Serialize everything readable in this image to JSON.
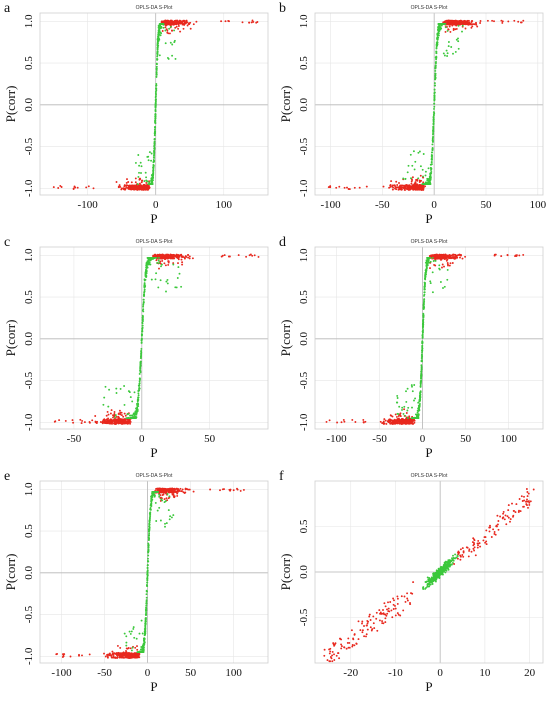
{
  "colors": {
    "red": "#e8281e",
    "green": "#3cc83c"
  },
  "chart_data": [
    {
      "letter": "a",
      "type": "scatter",
      "title": "OPLS-DA S-Plot",
      "xlabel": "P",
      "ylabel": "P(corr)",
      "xlim": [
        -170,
        165
      ],
      "ylim": [
        -1.08,
        1.1
      ],
      "xticks": [
        -100,
        0,
        100
      ],
      "xtick_labels": [
        "-100",
        "0",
        "100"
      ],
      "yticks": [
        -1.0,
        -0.5,
        0.0,
        0.5,
        1.0
      ],
      "ytick_labels": [
        "-1.0",
        "-0.5",
        "0.0",
        "0.5",
        "1.0"
      ],
      "model": {
        "kind": "sigmoid",
        "k": 0.3,
        "xmin": -150,
        "xmax": 150,
        "spread": 40
      }
    },
    {
      "letter": "b",
      "type": "scatter",
      "title": "OPLS-DA S-Plot",
      "xlabel": "P",
      "ylabel": "P(corr)",
      "xlim": [
        -115,
        105
      ],
      "ylim": [
        -1.08,
        1.1
      ],
      "xticks": [
        -100,
        -50,
        0,
        50,
        100
      ],
      "xtick_labels": [
        "-100",
        "-50",
        "0",
        "50",
        "100"
      ],
      "yticks": [
        -1.0,
        -0.5,
        0.0,
        0.5,
        1.0
      ],
      "ytick_labels": [
        "-1.0",
        "-0.5",
        "0.0",
        "0.5",
        "1.0"
      ],
      "model": {
        "kind": "sigmoid",
        "k": 0.35,
        "xmin": -110,
        "xmax": 95,
        "spread": 30
      }
    },
    {
      "letter": "c",
      "type": "scatter",
      "title": "OPLS-DA S-Plot",
      "xlabel": "P",
      "ylabel": "P(corr)",
      "xlim": [
        -75,
        93
      ],
      "ylim": [
        -1.08,
        1.1
      ],
      "xticks": [
        -50,
        0,
        50
      ],
      "xtick_labels": [
        "-50",
        "0",
        "50"
      ],
      "yticks": [
        -1.0,
        -0.5,
        0.0,
        0.5,
        1.0
      ],
      "ytick_labels": [
        "-1.0",
        "-0.5",
        "0.0",
        "0.5",
        "1.0"
      ],
      "model": {
        "kind": "sigmoid",
        "k": 0.35,
        "xmin": -70,
        "xmax": 88,
        "spread": 22
      }
    },
    {
      "letter": "d",
      "type": "scatter",
      "title": "OPLS-DA S-Plot",
      "xlabel": "P",
      "ylabel": "P(corr)",
      "xlim": [
        -125,
        140
      ],
      "ylim": [
        -1.08,
        1.1
      ],
      "xticks": [
        -100,
        -50,
        0,
        50,
        100
      ],
      "xtick_labels": [
        "-100",
        "-50",
        "0",
        "50",
        "100"
      ],
      "yticks": [
        -1.0,
        -0.5,
        0.0,
        0.5,
        1.0
      ],
      "ytick_labels": [
        "-1.0",
        "-0.5",
        "0.0",
        "0.5",
        "1.0"
      ],
      "model": {
        "kind": "sigmoid",
        "k": 0.3,
        "xmin": -115,
        "xmax": 125,
        "spread": 35
      }
    },
    {
      "letter": "e",
      "type": "scatter",
      "title": "OPLS-DA S-Plot",
      "xlabel": "P",
      "ylabel": "P(corr)",
      "xlim": [
        -125,
        140
      ],
      "ylim": [
        -1.08,
        1.1
      ],
      "xticks": [
        -100,
        -50,
        0,
        50,
        100
      ],
      "xtick_labels": [
        "-100",
        "-50",
        "0",
        "50",
        "100"
      ],
      "yticks": [
        -1.0,
        -0.5,
        0.0,
        0.5,
        1.0
      ],
      "ytick_labels": [
        "-1.0",
        "-0.5",
        "0.0",
        "0.5",
        "1.0"
      ],
      "model": {
        "kind": "sigmoid",
        "k": 0.3,
        "xmin": -118,
        "xmax": 125,
        "spread": 35
      }
    },
    {
      "letter": "f",
      "type": "scatter",
      "title": "OPLS-DA S-Plot",
      "xlabel": "P",
      "ylabel": "P(corr)",
      "xlim": [
        -28,
        23
      ],
      "ylim": [
        -1.0,
        1.0
      ],
      "xticks": [
        -20,
        -10,
        0,
        10,
        20
      ],
      "xtick_labels": [
        "-20",
        "-10",
        "0",
        "10",
        "20"
      ],
      "yticks": [
        -0.5,
        0.0,
        0.5
      ],
      "ytick_labels": [
        "-0.5",
        "0.0",
        "0.5"
      ],
      "model": {
        "kind": "linear",
        "xmin": -26,
        "xmax": 21
      }
    }
  ]
}
